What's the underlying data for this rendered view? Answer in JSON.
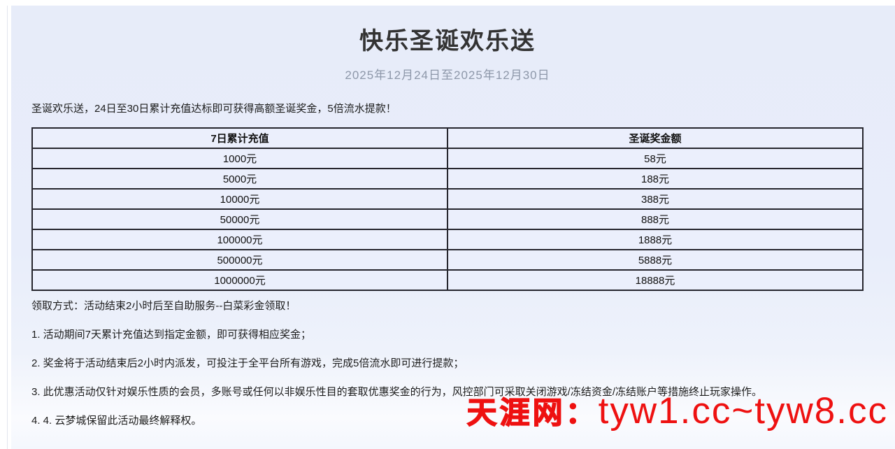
{
  "page": {
    "title": "快乐圣诞欢乐送",
    "date_range": "2025年12月24日至2025年12月30日",
    "intro": "圣诞欢乐送，24日至30日累计充值达标即可获得高额圣诞奖金，5倍流水提款！"
  },
  "table": {
    "headers": [
      "7日累计充值",
      "圣诞奖金额"
    ],
    "rows": [
      [
        "1000元",
        "58元"
      ],
      [
        "5000元",
        "188元"
      ],
      [
        "10000元",
        "388元"
      ],
      [
        "50000元",
        "888元"
      ],
      [
        "100000元",
        "1888元"
      ],
      [
        "500000元",
        "5888元"
      ],
      [
        "1000000元",
        "18888元"
      ]
    ]
  },
  "notes": {
    "claim_method": "领取方式：活动结束2小时后至自助服务--白菜彩金领取！",
    "items": [
      "1. 活动期间7天累计充值达到指定金额，即可获得相应奖金；",
      "2. 奖金将于活动结束后2小时内派发，可投注于全平台所有游戏，完成5倍流水即可进行提款；",
      "3. 此优惠活动仅针对娱乐性质的会员，多账号或任何以非娱乐性目的套取优惠奖金的行为，风控部门可采取关闭游戏/冻结资金/冻结账户等措施终止玩家操作。",
      "4. 4. 云梦城保留此活动最终解释权。"
    ]
  },
  "watermark": {
    "site_name": "天涯网：",
    "urls": "tyw1.cc~tyw8.cc",
    "color": "#ee1111"
  },
  "colors": {
    "content_background": "#e8edfa",
    "title_text": "#333333",
    "date_text": "#8d97a9",
    "body_text": "#1c1c1c",
    "table_border": "#26262e",
    "table_cell_background": "#ebeffc",
    "watermark_red": "#ee1111"
  }
}
